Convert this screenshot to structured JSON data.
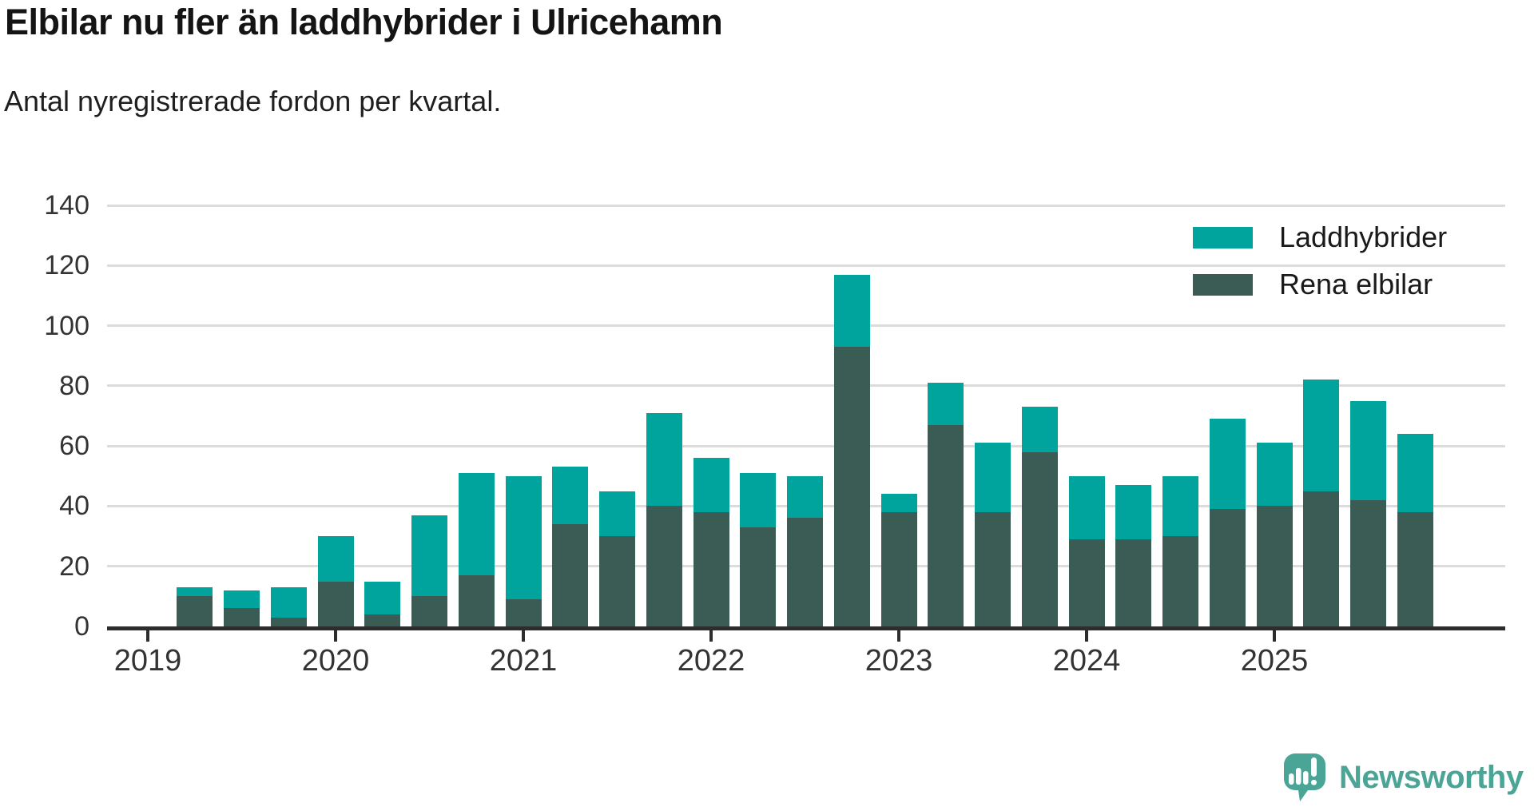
{
  "title": "Elbilar nu fler än laddhybrider i Ulricehamn",
  "subtitle": "Antal nyregistrerade fordon per kvartal.",
  "legend": {
    "position": "top-right",
    "items": [
      {
        "label": "Laddhybrider",
        "color": "#00a49d"
      },
      {
        "label": "Rena elbilar",
        "color": "#3a5c54"
      }
    ]
  },
  "y_axis": {
    "ticks": [
      0,
      20,
      40,
      60,
      80,
      100,
      120,
      140
    ]
  },
  "x_axis": {
    "years": [
      "2019",
      "2020",
      "2021",
      "2022",
      "2023",
      "2024",
      "2025"
    ]
  },
  "chart_data": {
    "type": "bar",
    "stacked": true,
    "title": "Elbilar nu fler än laddhybrider i Ulricehamn",
    "subtitle": "Antal nyregistrerade fordon per kvartal.",
    "x": [
      "2019 Q2",
      "2019 Q3",
      "2019 Q4",
      "2020 Q1",
      "2020 Q2",
      "2020 Q3",
      "2020 Q4",
      "2021 Q1",
      "2021 Q2",
      "2021 Q3",
      "2021 Q4",
      "2022 Q1",
      "2022 Q2",
      "2022 Q3",
      "2022 Q4",
      "2023 Q1",
      "2023 Q2",
      "2023 Q3",
      "2023 Q4",
      "2024 Q1",
      "2024 Q2",
      "2024 Q3",
      "2024 Q4",
      "2025 Q1",
      "2025 Q2",
      "2025 Q3",
      "2025 Q4"
    ],
    "series": [
      {
        "name": "Rena elbilar",
        "color": "#3a5c54",
        "values": [
          10,
          6,
          3,
          15,
          4,
          10,
          17,
          9,
          34,
          30,
          40,
          38,
          33,
          36,
          93,
          38,
          67,
          38,
          58,
          29,
          29,
          30,
          39,
          40,
          45,
          42,
          38
        ]
      },
      {
        "name": "Laddhybrider",
        "color": "#00a49d",
        "values": [
          3,
          6,
          10,
          15,
          11,
          27,
          34,
          41,
          19,
          15,
          31,
          18,
          18,
          14,
          24,
          6,
          14,
          23,
          15,
          21,
          18,
          20,
          30,
          21,
          37,
          33,
          26
        ]
      }
    ],
    "totals": [
      13,
      12,
      13,
      30,
      15,
      37,
      51,
      50,
      53,
      45,
      71,
      56,
      51,
      50,
      117,
      44,
      81,
      61,
      73,
      50,
      47,
      50,
      69,
      61,
      82,
      75,
      64
    ],
    "xlabel": "",
    "ylabel": "",
    "ylim": [
      0,
      140
    ],
    "grid": true,
    "legend_position": "top-right"
  },
  "branding": {
    "name": "Newsworthy",
    "color": "#4aa596"
  }
}
